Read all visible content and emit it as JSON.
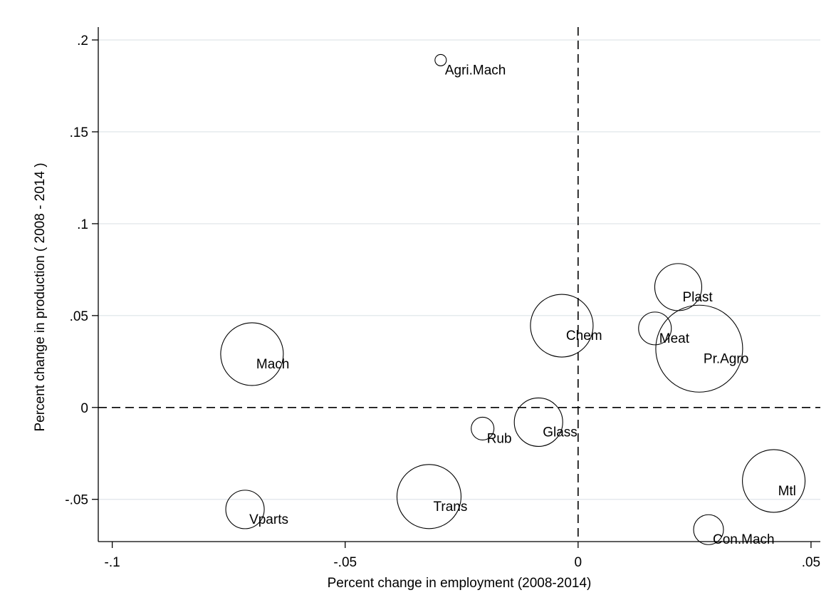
{
  "chart_data": {
    "type": "scatter",
    "xlabel": "Percent change in employment (2008-2014)",
    "ylabel": "Percent change in production ( 2008 - 2014 )",
    "xlim": [
      -0.103,
      0.052
    ],
    "ylim": [
      -0.073,
      0.207
    ],
    "x_ticks": [
      {
        "value": -0.1,
        "label": "-.1"
      },
      {
        "value": -0.05,
        "label": "-.05"
      },
      {
        "value": 0,
        "label": "0"
      },
      {
        "value": 0.05,
        "label": ".05"
      }
    ],
    "y_ticks": [
      {
        "value": -0.05,
        "label": "-.05"
      },
      {
        "value": 0,
        "label": "0"
      },
      {
        "value": 0.05,
        "label": ".05"
      },
      {
        "value": 0.1,
        "label": ".1"
      },
      {
        "value": 0.15,
        "label": ".15"
      },
      {
        "value": 0.2,
        "label": ".2"
      }
    ],
    "grid": "horizontal",
    "reference_lines": {
      "x": 0,
      "y": 0
    },
    "points": [
      {
        "label": "Agri.Mach",
        "x": -0.0295,
        "y": 0.189,
        "size": 8
      },
      {
        "label": "Plast",
        "x": 0.0215,
        "y": 0.0655,
        "size": 33
      },
      {
        "label": "Chem",
        "x": -0.0035,
        "y": 0.0445,
        "size": 44
      },
      {
        "label": "Meat",
        "x": 0.0165,
        "y": 0.043,
        "size": 23
      },
      {
        "label": "Pr.Agro",
        "x": 0.026,
        "y": 0.032,
        "size": 61
      },
      {
        "label": "Mach",
        "x": -0.07,
        "y": 0.029,
        "size": 44
      },
      {
        "label": "Rub",
        "x": -0.0205,
        "y": -0.0115,
        "size": 16
      },
      {
        "label": "Glass",
        "x": -0.0085,
        "y": -0.008,
        "size": 34
      },
      {
        "label": "Mtl",
        "x": 0.042,
        "y": -0.04,
        "size": 44
      },
      {
        "label": "Trans",
        "x": -0.032,
        "y": -0.0485,
        "size": 45
      },
      {
        "label": "Vparts",
        "x": -0.0715,
        "y": -0.0555,
        "size": 27
      },
      {
        "label": "Con.Mach",
        "x": 0.028,
        "y": -0.0665,
        "size": 21
      }
    ]
  }
}
